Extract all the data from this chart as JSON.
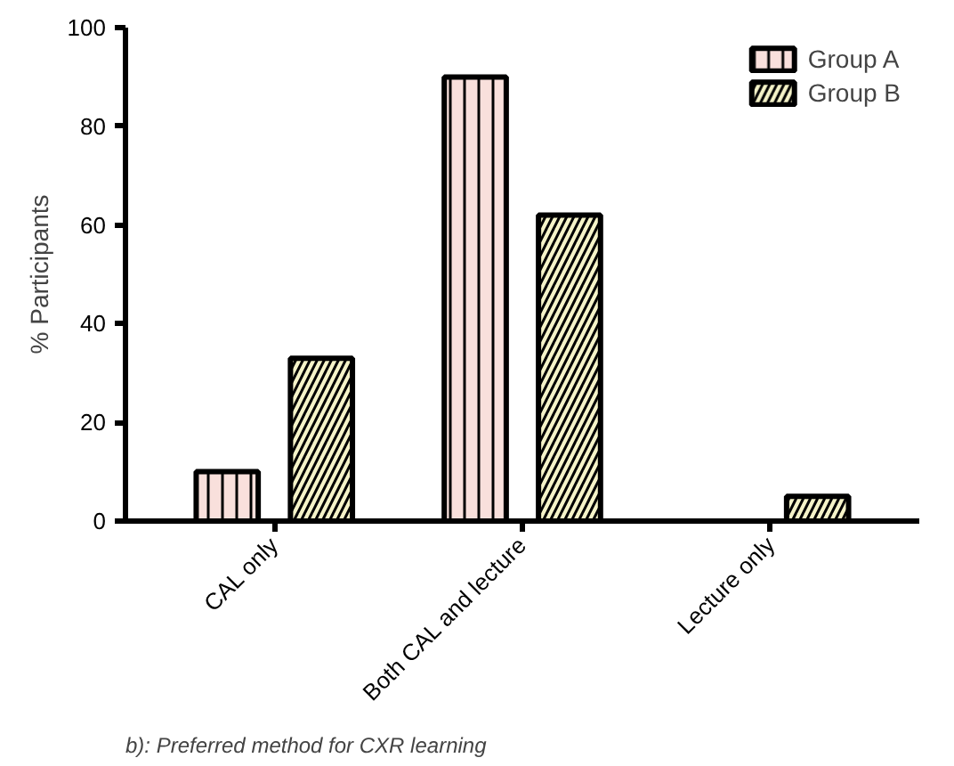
{
  "chart_data": {
    "type": "bar",
    "ylabel": "% Participants",
    "categories": [
      "CAL only",
      "Both CAL and lecture",
      "Lecture only"
    ],
    "series": [
      {
        "name": "Group A",
        "color": "#f9e0dc",
        "values": [
          10,
          90,
          0
        ]
      },
      {
        "name": "Group B",
        "color": "#f5f3c8",
        "values": [
          33,
          62,
          5
        ]
      }
    ],
    "ylim": [
      0,
      100
    ],
    "yticks": [
      0,
      20,
      40,
      60,
      80,
      100
    ],
    "grid": false,
    "legend": "top right",
    "annotations": [
      "b): Preferred method for CXR learning"
    ]
  }
}
